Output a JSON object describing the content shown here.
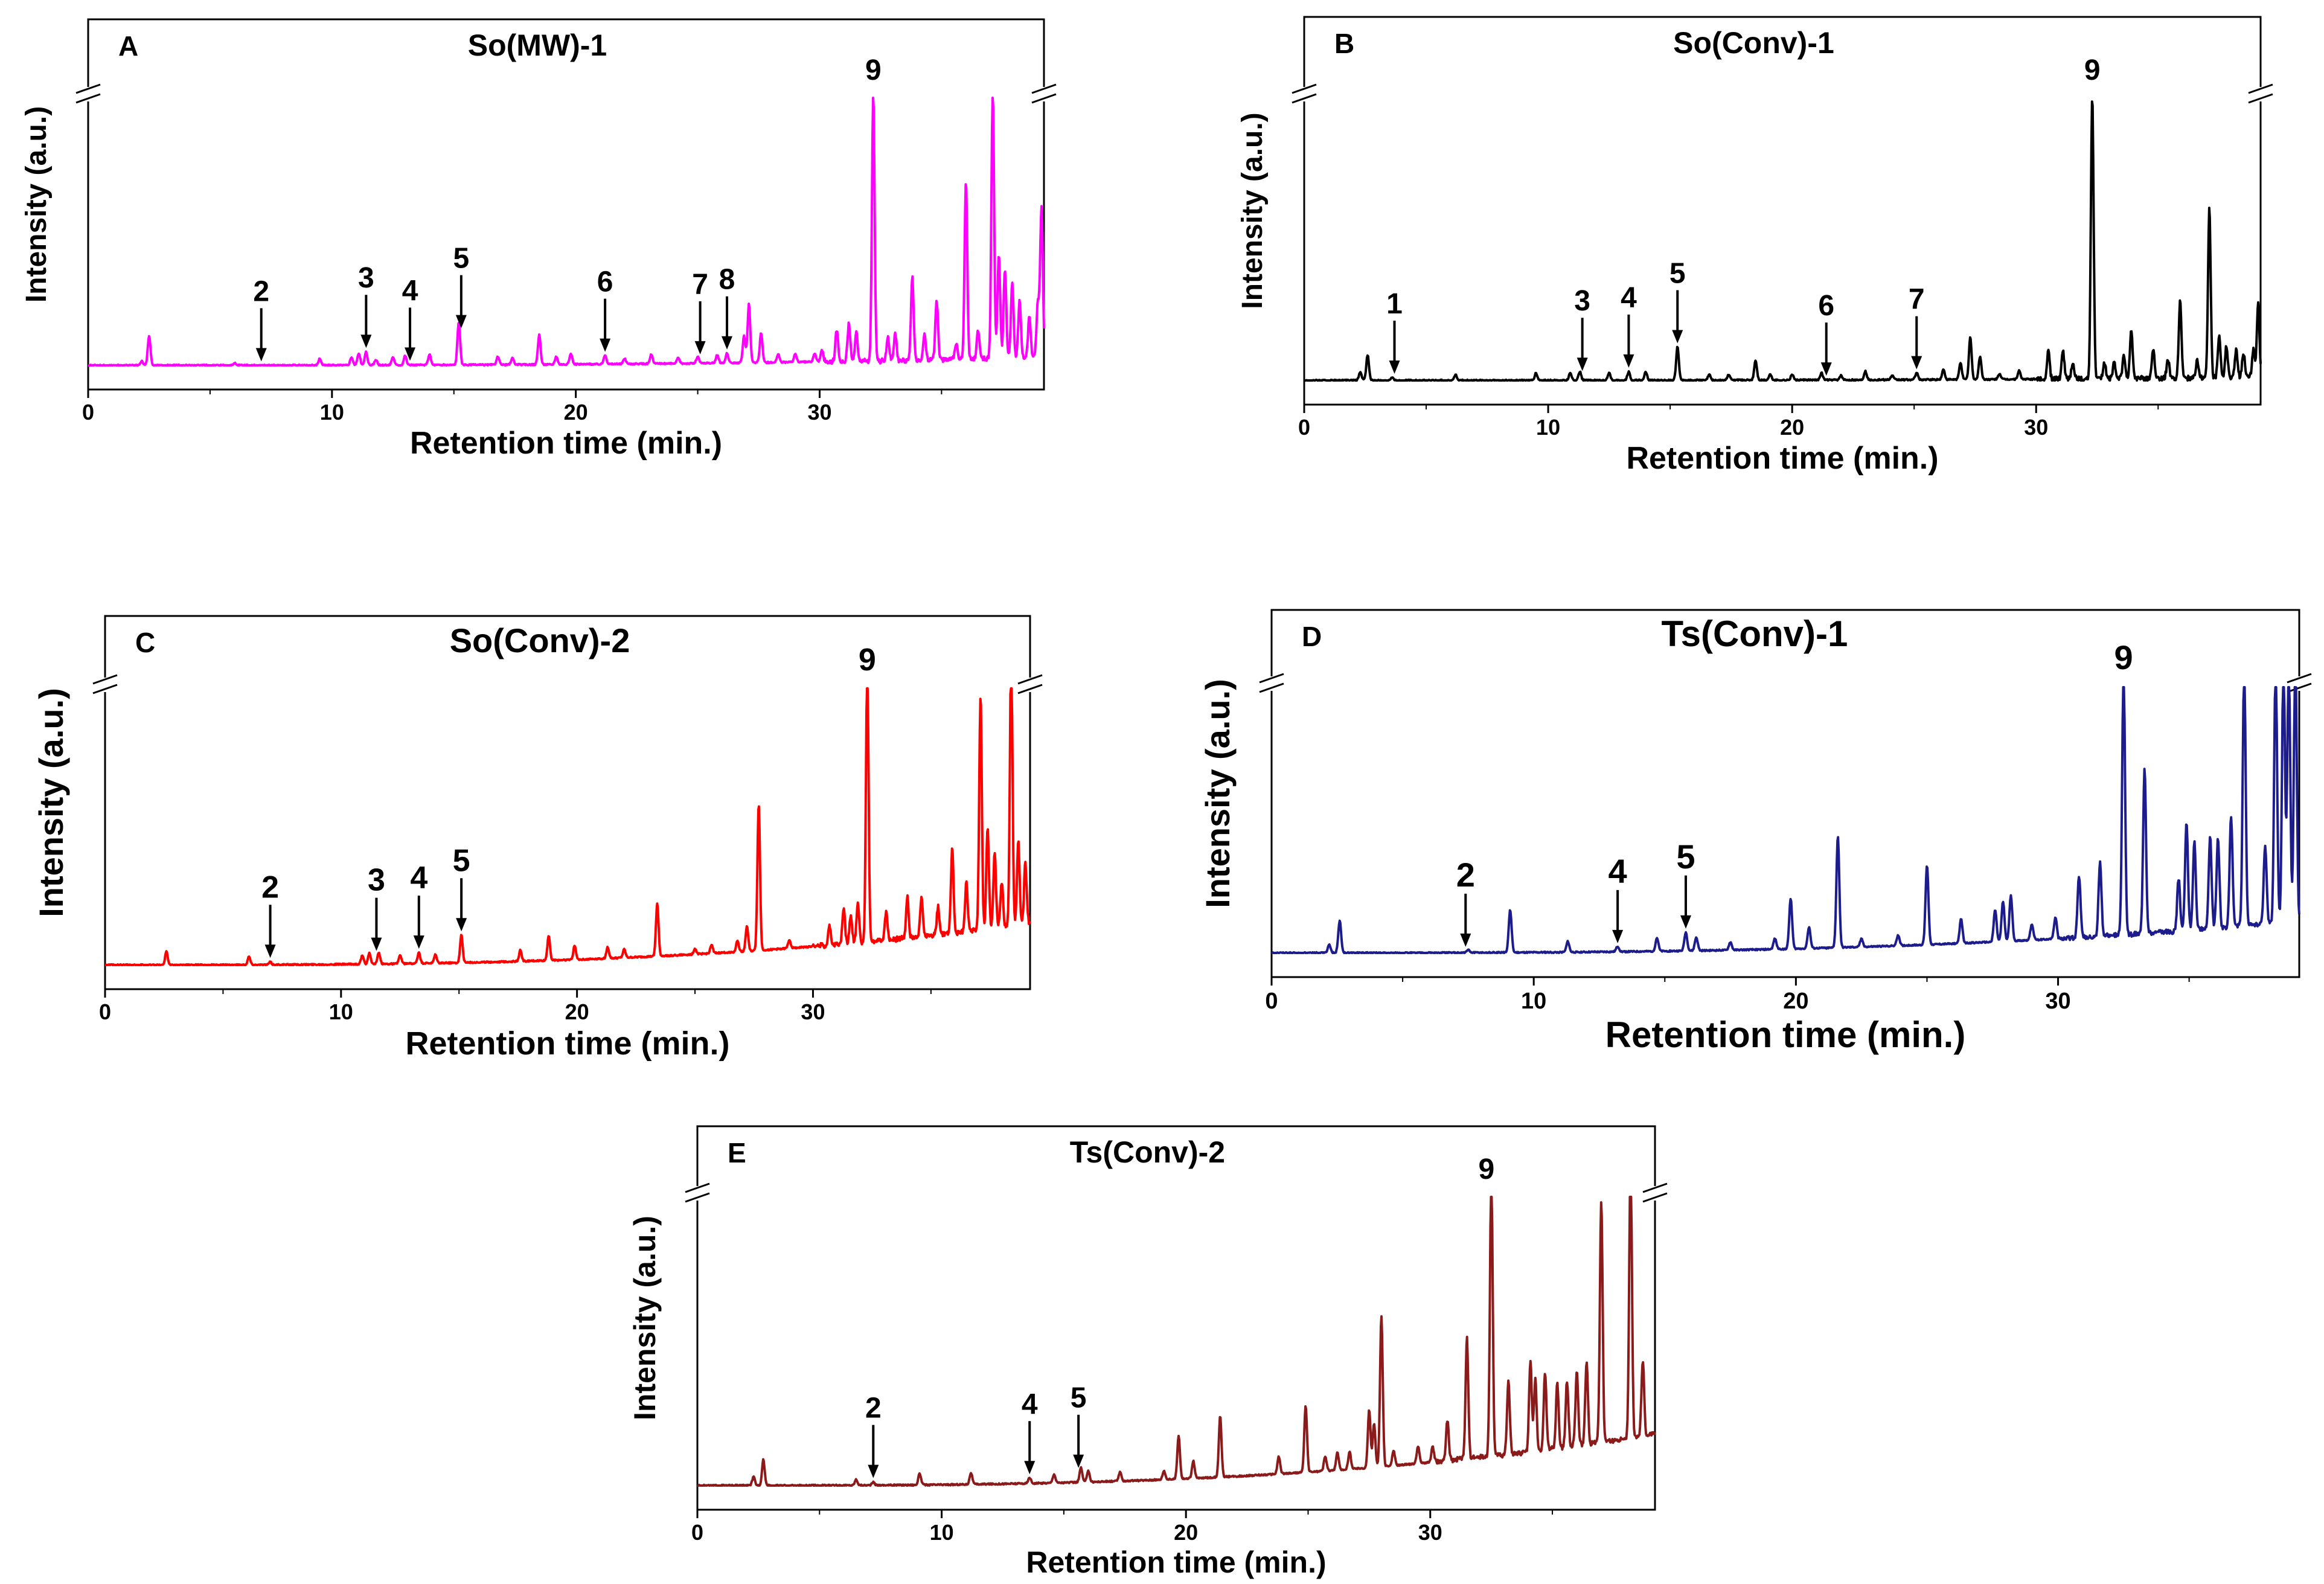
{
  "chart_data": [
    {
      "panel": "A",
      "type": "line",
      "title": "So(MW)-1",
      "color": "#ff00ff",
      "xlabel": "Retention time (min.)",
      "ylabel": "Intensity (a.u.)",
      "xlim": [
        0,
        39.2
      ],
      "ylim": [
        0,
        100
      ],
      "xticks": [
        0,
        10,
        20,
        30
      ],
      "break_label": "//",
      "baseline": {
        "start": 0.0,
        "end": 3.0
      },
      "peaks": [
        [
          2.2,
          1.5
        ],
        [
          2.5,
          11
        ],
        [
          6.0,
          0.8
        ],
        [
          9.5,
          2.5
        ],
        [
          10.8,
          3
        ],
        [
          11.1,
          4.5
        ],
        [
          11.4,
          5
        ],
        [
          11.8,
          2
        ],
        [
          12.5,
          3
        ],
        [
          13.0,
          3.5
        ],
        [
          14.0,
          4
        ],
        [
          15.2,
          16
        ],
        [
          16.8,
          3
        ],
        [
          17.4,
          2.5
        ],
        [
          18.5,
          11
        ],
        [
          19.2,
          3
        ],
        [
          19.8,
          4
        ],
        [
          21.2,
          3.5
        ],
        [
          22.0,
          2
        ],
        [
          23.1,
          3.5
        ],
        [
          24.2,
          2
        ],
        [
          25.0,
          2.5
        ],
        [
          25.8,
          3
        ],
        [
          26.2,
          3.5
        ],
        [
          26.9,
          10
        ],
        [
          27.1,
          22
        ],
        [
          27.6,
          11
        ],
        [
          28.3,
          3
        ],
        [
          29.0,
          3
        ],
        [
          29.8,
          3
        ],
        [
          30.1,
          4
        ],
        [
          30.7,
          12
        ],
        [
          31.2,
          14
        ],
        [
          31.5,
          11
        ],
        [
          32.2,
          100
        ],
        [
          32.8,
          9
        ],
        [
          33.1,
          10
        ],
        [
          33.8,
          31
        ],
        [
          34.3,
          10
        ],
        [
          34.8,
          22
        ],
        [
          35.6,
          6
        ],
        [
          36.0,
          67
        ],
        [
          36.5,
          11
        ],
        [
          37.1,
          100
        ],
        [
          37.35,
          38
        ],
        [
          37.6,
          33
        ],
        [
          37.9,
          28
        ],
        [
          38.2,
          21
        ],
        [
          38.6,
          15
        ],
        [
          38.95,
          20
        ],
        [
          39.1,
          56
        ]
      ],
      "markers": [
        {
          "label": "2",
          "x": 7.1
        },
        {
          "label": "3",
          "x": 11.4
        },
        {
          "label": "4",
          "x": 13.2
        },
        {
          "label": "5",
          "x": 15.3
        },
        {
          "label": "6",
          "x": 21.2
        },
        {
          "label": "7",
          "x": 25.1
        },
        {
          "label": "8",
          "x": 26.2
        }
      ],
      "peak_label": {
        "label": "9",
        "x": 32.2
      }
    },
    {
      "panel": "B",
      "type": "line",
      "title": "So(Conv)-1",
      "color": "#000000",
      "xlabel": "Retention time (min.)",
      "ylabel": "Intensity (a.u.)",
      "xlim": [
        0,
        39.2
      ],
      "ylim": [
        0,
        100
      ],
      "xticks": [
        0,
        10,
        20,
        30
      ],
      "break_label": "//",
      "baseline": {
        "start": 0.0,
        "end": 1.0
      },
      "peaks": [
        [
          2.3,
          3
        ],
        [
          2.6,
          9
        ],
        [
          3.6,
          1
        ],
        [
          6.2,
          2
        ],
        [
          9.5,
          2.5
        ],
        [
          10.9,
          2.5
        ],
        [
          11.3,
          3
        ],
        [
          12.5,
          2.5
        ],
        [
          13.3,
          3
        ],
        [
          14.0,
          3
        ],
        [
          15.3,
          12
        ],
        [
          16.6,
          2
        ],
        [
          17.4,
          2
        ],
        [
          18.5,
          7
        ],
        [
          19.1,
          2
        ],
        [
          20.0,
          2
        ],
        [
          21.2,
          2.5
        ],
        [
          22.0,
          1.5
        ],
        [
          23.0,
          3
        ],
        [
          24.1,
          1.5
        ],
        [
          25.1,
          2.5
        ],
        [
          26.2,
          3.5
        ],
        [
          26.9,
          6
        ],
        [
          27.3,
          15
        ],
        [
          27.7,
          8
        ],
        [
          28.5,
          2
        ],
        [
          29.3,
          3
        ],
        [
          30.5,
          10
        ],
        [
          31.1,
          10
        ],
        [
          31.5,
          6
        ],
        [
          32.3,
          100
        ],
        [
          32.8,
          6
        ],
        [
          33.2,
          6
        ],
        [
          33.6,
          8
        ],
        [
          33.9,
          17
        ],
        [
          34.8,
          10
        ],
        [
          35.4,
          7
        ],
        [
          35.9,
          27
        ],
        [
          36.6,
          6
        ],
        [
          37.1,
          60
        ],
        [
          37.5,
          15
        ],
        [
          37.8,
          11
        ],
        [
          38.2,
          10
        ],
        [
          38.5,
          9
        ],
        [
          38.9,
          10
        ],
        [
          39.1,
          26
        ]
      ],
      "markers": [
        {
          "label": "1",
          "x": 3.7
        },
        {
          "label": "3",
          "x": 11.4
        },
        {
          "label": "4",
          "x": 13.3
        },
        {
          "label": "5",
          "x": 15.3
        },
        {
          "label": "6",
          "x": 21.4
        },
        {
          "label": "7",
          "x": 25.1
        }
      ],
      "peak_label": {
        "label": "9",
        "x": 32.3
      }
    },
    {
      "panel": "C",
      "type": "line",
      "title": "So(Conv)-2",
      "color": "#ff0000",
      "xlabel": "Retention time (min.)",
      "ylabel": "Intensity (a.u.)",
      "xlim": [
        0,
        39.2
      ],
      "ylim": [
        0,
        100
      ],
      "xticks": [
        0,
        10,
        20,
        30
      ],
      "break_label": "//",
      "baseline": {
        "start": 0.0,
        "end": 15.0
      },
      "peaks": [
        [
          2.6,
          5
        ],
        [
          6.1,
          3
        ],
        [
          7.0,
          1
        ],
        [
          10.9,
          3
        ],
        [
          11.2,
          4
        ],
        [
          11.6,
          4
        ],
        [
          12.5,
          3
        ],
        [
          13.3,
          4
        ],
        [
          14.0,
          3
        ],
        [
          15.1,
          10
        ],
        [
          17.6,
          4
        ],
        [
          18.8,
          9
        ],
        [
          19.9,
          5
        ],
        [
          21.3,
          4
        ],
        [
          22.0,
          3
        ],
        [
          23.4,
          19
        ],
        [
          25.0,
          2
        ],
        [
          25.7,
          3
        ],
        [
          26.8,
          4
        ],
        [
          27.2,
          9
        ],
        [
          27.7,
          53
        ],
        [
          29.0,
          3
        ],
        [
          30.7,
          7
        ],
        [
          31.3,
          13
        ],
        [
          31.6,
          10
        ],
        [
          31.9,
          14
        ],
        [
          32.3,
          100
        ],
        [
          33.1,
          10
        ],
        [
          34.0,
          15
        ],
        [
          34.6,
          14
        ],
        [
          35.3,
          10
        ],
        [
          35.9,
          30
        ],
        [
          36.5,
          18
        ],
        [
          37.1,
          85
        ],
        [
          37.4,
          37
        ],
        [
          37.7,
          27
        ],
        [
          38.0,
          16
        ],
        [
          38.4,
          100
        ],
        [
          38.7,
          30
        ],
        [
          39.0,
          22
        ]
      ],
      "markers": [
        {
          "label": "2",
          "x": 7.0
        },
        {
          "label": "3",
          "x": 11.5
        },
        {
          "label": "4",
          "x": 13.3
        },
        {
          "label": "5",
          "x": 15.1
        }
      ],
      "peak_label": {
        "label": "9",
        "x": 32.3
      }
    },
    {
      "panel": "D",
      "type": "line",
      "title": "Ts(Conv)-1",
      "color": "#1c1c8c",
      "xlabel": "Retention time (min.)",
      "ylabel": "Intensity (a.u.)",
      "xlim": [
        0,
        39.2
      ],
      "ylim": [
        0,
        100
      ],
      "xticks": [
        0,
        10,
        20,
        30
      ],
      "break_label": "//",
      "baseline": {
        "start": 0.0,
        "end": 12.0
      },
      "peaks": [
        [
          2.2,
          3
        ],
        [
          2.6,
          12
        ],
        [
          7.5,
          1
        ],
        [
          9.1,
          16
        ],
        [
          11.3,
          4
        ],
        [
          13.2,
          2
        ],
        [
          14.7,
          5
        ],
        [
          15.8,
          7
        ],
        [
          16.2,
          5
        ],
        [
          17.5,
          3
        ],
        [
          19.2,
          4
        ],
        [
          19.8,
          19
        ],
        [
          20.5,
          8
        ],
        [
          21.6,
          42
        ],
        [
          22.5,
          3
        ],
        [
          23.9,
          4
        ],
        [
          25.0,
          30
        ],
        [
          26.3,
          9
        ],
        [
          27.6,
          12
        ],
        [
          27.9,
          15
        ],
        [
          28.2,
          17
        ],
        [
          29.0,
          6
        ],
        [
          29.9,
          8
        ],
        [
          30.8,
          23
        ],
        [
          31.6,
          28
        ],
        [
          32.5,
          100
        ],
        [
          33.3,
          63
        ],
        [
          34.6,
          20
        ],
        [
          34.9,
          41
        ],
        [
          35.2,
          33
        ],
        [
          35.8,
          35
        ],
        [
          36.1,
          34
        ],
        [
          36.6,
          42
        ],
        [
          37.1,
          100
        ],
        [
          37.9,
          30
        ],
        [
          38.3,
          100
        ],
        [
          38.6,
          100
        ],
        [
          38.8,
          100
        ],
        [
          39.05,
          100
        ]
      ],
      "markers": [
        {
          "label": "2",
          "x": 7.4
        },
        {
          "label": "4",
          "x": 13.2
        },
        {
          "label": "5",
          "x": 15.8
        }
      ],
      "peak_label": {
        "label": "9",
        "x": 32.5
      }
    },
    {
      "panel": "E",
      "type": "line",
      "title": "Ts(Conv)-2",
      "color": "#8b1a1a",
      "xlabel": "Retention time (min.)",
      "ylabel": "Intensity (a.u.)",
      "xlim": [
        0,
        39.2
      ],
      "ylim": [
        0,
        100
      ],
      "xticks": [
        0,
        10,
        20,
        30
      ],
      "break_label": "//",
      "baseline": {
        "start": 0.0,
        "end": 18.0
      },
      "peaks": [
        [
          2.3,
          3
        ],
        [
          2.7,
          9
        ],
        [
          6.5,
          2
        ],
        [
          7.2,
          1
        ],
        [
          9.1,
          4
        ],
        [
          11.2,
          4
        ],
        [
          13.6,
          2
        ],
        [
          14.6,
          3
        ],
        [
          15.7,
          5
        ],
        [
          16.0,
          4
        ],
        [
          17.3,
          3
        ],
        [
          19.1,
          3
        ],
        [
          19.7,
          15
        ],
        [
          20.3,
          6
        ],
        [
          21.4,
          21
        ],
        [
          23.8,
          6
        ],
        [
          24.9,
          23
        ],
        [
          25.7,
          5
        ],
        [
          26.2,
          6
        ],
        [
          26.7,
          6
        ],
        [
          27.5,
          20
        ],
        [
          27.7,
          15
        ],
        [
          28.0,
          52
        ],
        [
          28.5,
          5
        ],
        [
          29.5,
          6
        ],
        [
          30.1,
          5
        ],
        [
          30.7,
          14
        ],
        [
          31.5,
          42
        ],
        [
          32.5,
          100
        ],
        [
          33.2,
          26
        ],
        [
          34.1,
          31
        ],
        [
          34.3,
          25
        ],
        [
          34.7,
          27
        ],
        [
          35.2,
          22
        ],
        [
          35.6,
          23
        ],
        [
          36.0,
          26
        ],
        [
          36.4,
          28
        ],
        [
          37.0,
          84
        ],
        [
          38.2,
          100
        ],
        [
          38.7,
          26
        ]
      ],
      "markers": [
        {
          "label": "2",
          "x": 7.2
        },
        {
          "label": "4",
          "x": 13.6
        },
        {
          "label": "5",
          "x": 15.6
        }
      ],
      "peak_label": {
        "label": "9",
        "x": 32.3
      }
    }
  ]
}
